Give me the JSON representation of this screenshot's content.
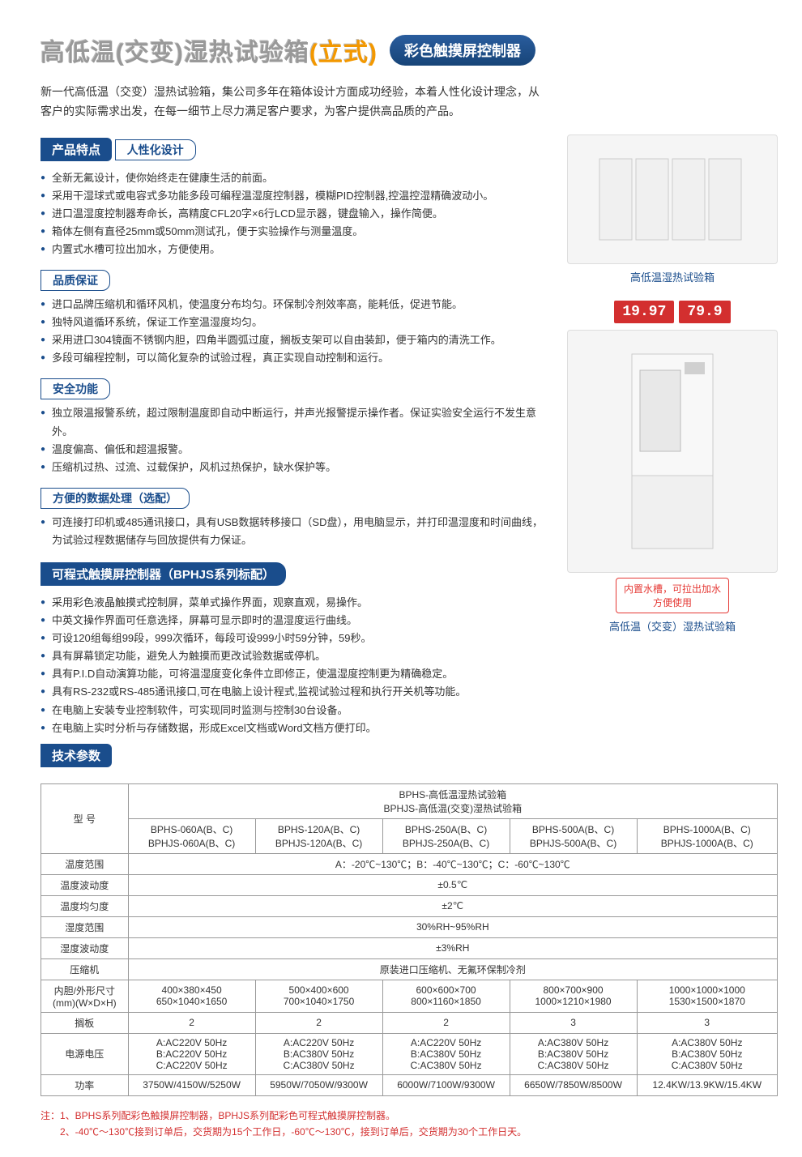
{
  "header": {
    "title_main": "高低温(交变)湿热试验箱",
    "title_suffix": "(立式)",
    "badge": "彩色触摸屏控制器"
  },
  "intro": "新一代高低温（交变）湿热试验箱，集公司多年在箱体设计方面成功经验，本着人性化设计理念，从客户的实际需求出发，在每一细节上尽力满足客户要求，为客户提供高品质的产品。",
  "section1": {
    "head": "产品特点",
    "sub1": "人性化设计",
    "list1": [
      "全新无氟设计，使你始终走在健康生活的前面。",
      "采用干湿球式或电容式多功能多段可编程温湿度控制器，模糊PID控制器,控温控湿精确波动小。",
      "进口温湿度控制器寿命长，高精度CFL20字×6行LCD显示器，键盘输入，操作简便。",
      "箱体左侧有直径25mm或50mm测试孔，便于实验操作与测量温度。",
      "内置式水槽可拉出加水，方便使用。"
    ],
    "sub2": "品质保证",
    "list2": [
      "进口品牌压缩机和循环风机，使温度分布均匀。环保制冷剂效率高，能耗低，促进节能。",
      "独特风道循环系统，保证工作室温湿度均匀。",
      "采用进口304镜面不锈钢内胆，四角半圆弧过度，搁板支架可以自由装卸，便于箱内的清洗工作。",
      "多段可编程控制，可以简化复杂的试验过程，真正实现自动控制和运行。"
    ],
    "sub3": "安全功能",
    "list3": [
      "独立限温报警系统，超过限制温度即自动中断运行，并声光报警提示操作者。保证实验安全运行不发生意外。",
      "温度偏高、偏低和超温报警。",
      "压缩机过热、过流、过载保护，风机过热保护，缺水保护等。"
    ],
    "sub4": "方便的数据处理（选配）",
    "list4": [
      "可连接打印机或485通讯接口，具有USB数据转移接口（SD盘），用电脑显示，并打印温湿度和时间曲线，为试验过程数据储存与回放提供有力保证。"
    ]
  },
  "section2": {
    "head": "可程式触摸屏控制器（BPHJS系列标配）",
    "list": [
      "采用彩色液晶触摸式控制屏，菜单式操作界面，观察直观，易操作。",
      "中英文操作界面可任意选择，屏幕可显示即时的温湿度运行曲线。",
      "可设120组每组99段，999次循环，每段可设999小时59分钟，59秒。",
      "具有屏幕锁定功能，避免人为触摸而更改试验数据或停机。",
      "具有P.I.D自动演算功能，可将温湿度变化条件立即修正，使温湿度控制更为精确稳定。",
      "具有RS-232或RS-485通讯接口,可在电脑上设计程式,监视试验过程和执行开关机等功能。",
      "在电脑上安装专业控制软件，可实现同时监测与控制30台设备。",
      "在电脑上实时分析与存储数据，形成Excel文档或Word文档方便打印。"
    ]
  },
  "section3_head": "技术参数",
  "right": {
    "img1_caption": "高低温湿热试验箱",
    "readout1": "19.97",
    "readout2": "79.9",
    "callout": "内置水槽，可拉出加水方便使用",
    "img2_caption": "高低温（交变）湿热试验箱"
  },
  "table": {
    "header_top": "BPHS-高低温湿热试验箱\nBPHJS-高低温(交变)湿热试验箱",
    "col_label": "型 号",
    "models": [
      "BPHS-060A(B、C)\nBPHJS-060A(B、C)",
      "BPHS-120A(B、C)\nBPHJS-120A(B、C)",
      "BPHS-250A(B、C)\nBPHJS-250A(B、C)",
      "BPHS-500A(B、C)\nBPHJS-500A(B、C)",
      "BPHS-1000A(B、C)\nBPHJS-1000A(B、C)"
    ],
    "rows": [
      {
        "label": "温度范围",
        "span": "A：-20℃~130℃；B：-40℃~130℃；C：-60℃~130℃"
      },
      {
        "label": "温度波动度",
        "span": "±0.5℃"
      },
      {
        "label": "温度均匀度",
        "span": "±2℃"
      },
      {
        "label": "湿度范围",
        "span": "30%RH~95%RH"
      },
      {
        "label": "湿度波动度",
        "span": "±3%RH"
      },
      {
        "label": "压缩机",
        "span": "原装进口压缩机、无氟环保制冷剂"
      },
      {
        "label": "内胆/外形尺寸\n(mm)(W×D×H)",
        "cells": [
          "400×380×450\n650×1040×1650",
          "500×400×600\n700×1040×1750",
          "600×600×700\n800×1160×1850",
          "800×700×900\n1000×1210×1980",
          "1000×1000×1000\n1530×1500×1870"
        ]
      },
      {
        "label": "搁板",
        "cells": [
          "2",
          "2",
          "2",
          "3",
          "3"
        ]
      },
      {
        "label": "电源电压",
        "cells": [
          "A:AC220V 50Hz\nB:AC220V 50Hz\nC:AC220V 50Hz",
          "A:AC220V 50Hz\nB:AC380V 50Hz\nC:AC380V 50Hz",
          "A:AC220V 50Hz\nB:AC380V 50Hz\nC:AC380V 50Hz",
          "A:AC380V 50Hz\nB:AC380V 50Hz\nC:AC380V 50Hz",
          "A:AC380V 50Hz\nB:AC380V 50Hz\nC:AC380V 50Hz"
        ]
      },
      {
        "label": "功率",
        "cells": [
          "3750W/4150W/5250W",
          "5950W/7050W/9300W",
          "6000W/7100W/9300W",
          "6650W/7850W/8500W",
          "12.4KW/13.9KW/15.4KW"
        ]
      }
    ]
  },
  "notes": [
    "注：1、BPHS系列配彩色触摸屏控制器，BPHJS系列配彩色可程式触摸屏控制器。",
    "　　2、-40℃～130℃接到订单后，交货期为15个工作日，-60℃～130℃，接到订单后，交货期为30个工作日天。"
  ]
}
